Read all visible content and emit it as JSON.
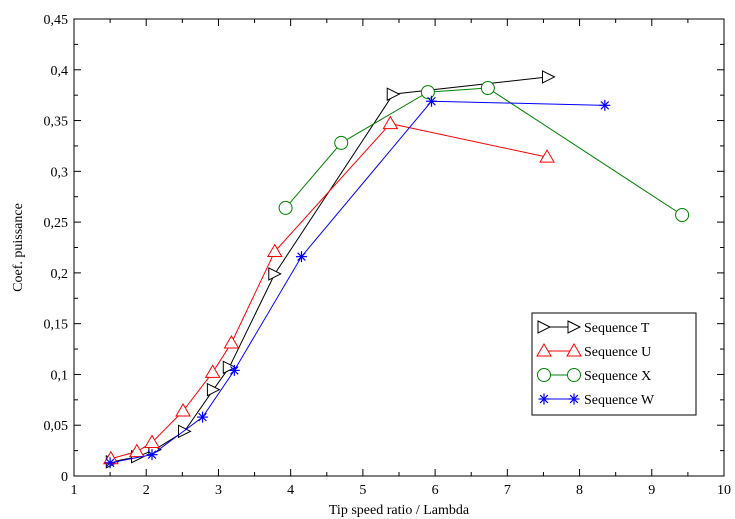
{
  "chart_data": {
    "type": "line",
    "xlabel": "Tip speed ratio / Lambda",
    "ylabel": "Coef. puissance",
    "xlim": [
      1,
      10
    ],
    "ylim": [
      0,
      0.45
    ],
    "x_ticks": [
      1,
      2,
      3,
      4,
      5,
      6,
      7,
      8,
      9,
      10
    ],
    "y_ticks": [
      0,
      0.05,
      0.1,
      0.15,
      0.2,
      0.25,
      0.3,
      0.35,
      0.4,
      0.45
    ],
    "x_tick_labels": [
      "1",
      "2",
      "3",
      "4",
      "5",
      "6",
      "7",
      "8",
      "9",
      "10"
    ],
    "y_tick_labels": [
      "0",
      "0,05",
      "0,1",
      "0,15",
      "0,2",
      "0,25",
      "0,3",
      "0,35",
      "0,4",
      "0,45"
    ],
    "grid": false,
    "legend_position": "right-middle",
    "series": [
      {
        "name": "Sequence T",
        "color": "#000000",
        "marker": "triangle-right",
        "x": [
          1.53,
          1.88,
          2.12,
          2.53,
          2.93,
          3.15,
          3.78,
          5.42,
          7.57
        ],
        "y": [
          0.014,
          0.019,
          0.026,
          0.044,
          0.085,
          0.107,
          0.199,
          0.376,
          0.393
        ]
      },
      {
        "name": "Sequence U",
        "color": "#ff0000",
        "marker": "triangle-up",
        "x": [
          1.51,
          1.87,
          2.08,
          2.51,
          2.92,
          3.18,
          3.78,
          5.38,
          7.55
        ],
        "y": [
          0.017,
          0.024,
          0.033,
          0.064,
          0.102,
          0.131,
          0.221,
          0.347,
          0.314
        ]
      },
      {
        "name": "Sequence X",
        "color": "#008000",
        "marker": "circle",
        "x": [
          3.93,
          4.7,
          5.9,
          6.73,
          9.42
        ],
        "y": [
          0.264,
          0.328,
          0.378,
          0.382,
          0.257
        ]
      },
      {
        "name": "Sequence W",
        "color": "#0000ff",
        "marker": "asterisk",
        "x": [
          1.5,
          2.08,
          2.78,
          3.22,
          4.15,
          5.95,
          8.35
        ],
        "y": [
          0.013,
          0.021,
          0.058,
          0.104,
          0.216,
          0.369,
          0.365
        ]
      }
    ]
  }
}
